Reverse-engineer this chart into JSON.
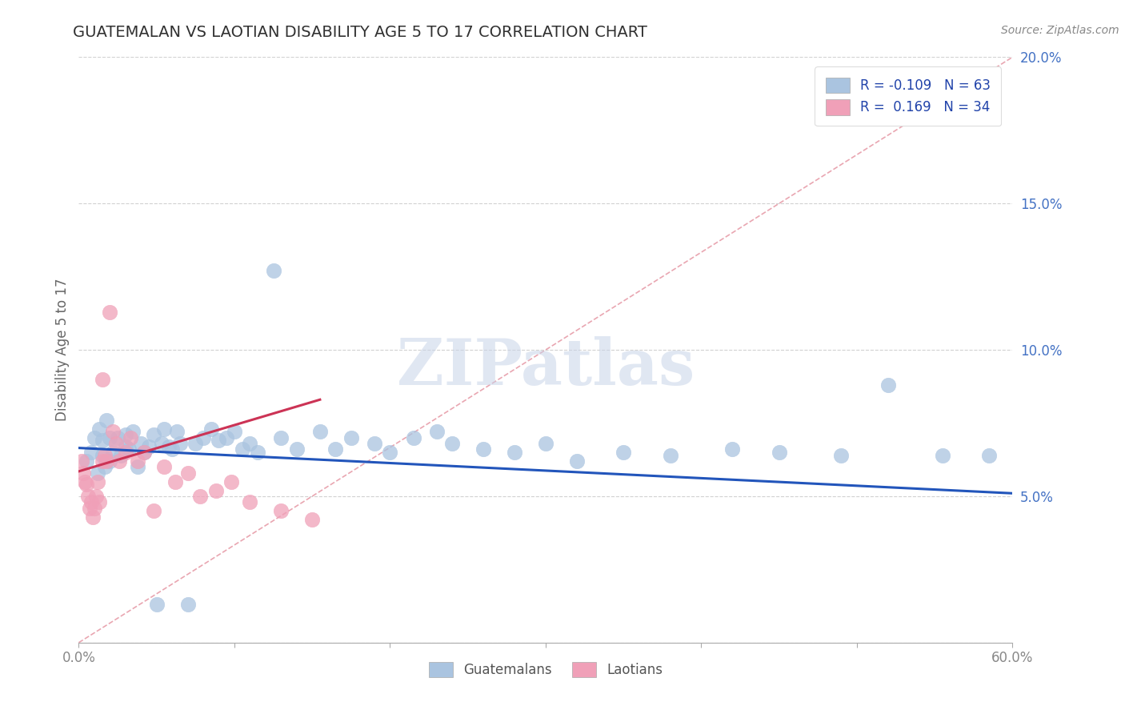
{
  "title": "GUATEMALAN VS LAOTIAN DISABILITY AGE 5 TO 17 CORRELATION CHART",
  "source_text": "Source: ZipAtlas.com",
  "ylabel": "Disability Age 5 to 17",
  "xlim": [
    0.0,
    0.6
  ],
  "ylim": [
    0.0,
    0.2
  ],
  "xtick_positions": [
    0.0,
    0.1,
    0.2,
    0.3,
    0.4,
    0.5,
    0.6
  ],
  "xtick_labels": [
    "0.0%",
    "",
    "",
    "",
    "",
    "",
    "60.0%"
  ],
  "ytick_positions": [
    0.0,
    0.05,
    0.1,
    0.15,
    0.2
  ],
  "ytick_labels": [
    "",
    "5.0%",
    "10.0%",
    "15.0%",
    "20.0%"
  ],
  "legend_labels": [
    "R = -0.109   N = 63",
    "R =  0.169   N = 34"
  ],
  "bottom_legend_labels": [
    "Guatemalans",
    "Laotians"
  ],
  "blue_color": "#aac4e0",
  "pink_color": "#f0a0b8",
  "blue_line_color": "#2255bb",
  "pink_line_color": "#cc3355",
  "ref_line_color": "#e08090",
  "title_color": "#303030",
  "watermark_color": "#c8d4e8",
  "background_color": "#ffffff",
  "grid_color": "#cccccc",
  "axis_color": "#aaaaaa",
  "tick_label_color_y": "#4472c4",
  "tick_label_color_x": "#888888",
  "blue_line_x": [
    0.0,
    0.6
  ],
  "blue_line_y": [
    0.0665,
    0.051
  ],
  "pink_line_x": [
    0.0,
    0.155
  ],
  "pink_line_y": [
    0.0585,
    0.083
  ],
  "ref_line_x": [
    0.0,
    0.6
  ],
  "ref_line_y": [
    0.0,
    0.2
  ],
  "blue_x": [
    0.005,
    0.008,
    0.01,
    0.012,
    0.013,
    0.015,
    0.015,
    0.017,
    0.018,
    0.02,
    0.02,
    0.022,
    0.025,
    0.027,
    0.03,
    0.03,
    0.032,
    0.035,
    0.038,
    0.04,
    0.042,
    0.045,
    0.048,
    0.05,
    0.053,
    0.055,
    0.058,
    0.06,
    0.063,
    0.065,
    0.07,
    0.075,
    0.08,
    0.085,
    0.09,
    0.095,
    0.1,
    0.105,
    0.11,
    0.115,
    0.125,
    0.13,
    0.14,
    0.155,
    0.165,
    0.175,
    0.19,
    0.2,
    0.215,
    0.23,
    0.24,
    0.26,
    0.28,
    0.3,
    0.32,
    0.35,
    0.38,
    0.42,
    0.45,
    0.49,
    0.52,
    0.555,
    0.585
  ],
  "blue_y": [
    0.062,
    0.065,
    0.07,
    0.058,
    0.073,
    0.064,
    0.069,
    0.06,
    0.076,
    0.062,
    0.07,
    0.065,
    0.07,
    0.064,
    0.071,
    0.067,
    0.066,
    0.072,
    0.06,
    0.068,
    0.065,
    0.067,
    0.071,
    0.013,
    0.068,
    0.073,
    0.067,
    0.066,
    0.072,
    0.068,
    0.013,
    0.068,
    0.07,
    0.073,
    0.069,
    0.07,
    0.072,
    0.066,
    0.068,
    0.065,
    0.127,
    0.07,
    0.066,
    0.072,
    0.066,
    0.07,
    0.068,
    0.065,
    0.07,
    0.072,
    0.068,
    0.066,
    0.065,
    0.068,
    0.062,
    0.065,
    0.064,
    0.066,
    0.065,
    0.064,
    0.088,
    0.064,
    0.064
  ],
  "pink_x": [
    0.002,
    0.003,
    0.004,
    0.005,
    0.006,
    0.007,
    0.008,
    0.009,
    0.01,
    0.011,
    0.012,
    0.013,
    0.015,
    0.015,
    0.017,
    0.018,
    0.02,
    0.022,
    0.024,
    0.026,
    0.03,
    0.033,
    0.038,
    0.042,
    0.048,
    0.055,
    0.062,
    0.07,
    0.078,
    0.088,
    0.098,
    0.11,
    0.13,
    0.15
  ],
  "pink_y": [
    0.062,
    0.058,
    0.055,
    0.054,
    0.05,
    0.046,
    0.048,
    0.043,
    0.046,
    0.05,
    0.055,
    0.048,
    0.062,
    0.09,
    0.064,
    0.062,
    0.113,
    0.072,
    0.068,
    0.062,
    0.065,
    0.07,
    0.062,
    0.065,
    0.045,
    0.06,
    0.055,
    0.058,
    0.05,
    0.052,
    0.055,
    0.048,
    0.045,
    0.042
  ]
}
